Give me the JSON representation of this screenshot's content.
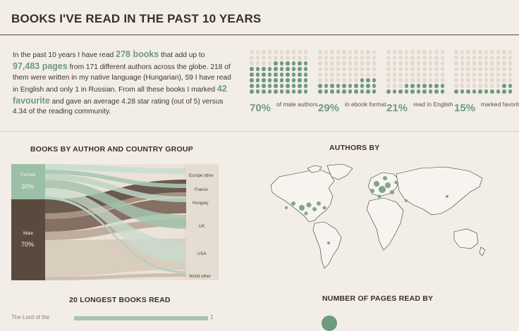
{
  "header": {
    "title": "BOOKS I'VE READ IN THE PAST 10 YEARS"
  },
  "intro": {
    "p1": "In the past 10 years I have read ",
    "books": "278 books",
    "p2": " that add up to ",
    "pages": "97,483 pages",
    "p3": " from 171 different authors across the globe. 218 of them were written in my native language (Hungarian), 59 I have read in English and only 1 in Russian. From all these books I marked ",
    "favourite": "42 favourite",
    "p4": " and gave an average 4.28 star rating (out of 5) versus 4.34 of the reading community."
  },
  "waffles": [
    {
      "pct": "70%",
      "label": "of male authors",
      "value": 0.7
    },
    {
      "pct": "29%",
      "label": "in ebook format",
      "value": 0.29
    },
    {
      "pct": "21%",
      "label": "read in English",
      "value": 0.21
    },
    {
      "pct": "15%",
      "label": "marked favorite",
      "value": 0.15
    }
  ],
  "sections": {
    "sankey_title": "BOOKS BY AUTHOR AND COUNTRY GROUP",
    "map_title": "AUTHORS BY",
    "longest_title": "20 LONGEST BOOKS READ",
    "pages_title": "NUMBER OF PAGES READ BY"
  },
  "sankey": {
    "sources": [
      {
        "name": "Female",
        "pct": "30%",
        "value": 0.3
      },
      {
        "name": "Male",
        "pct": "70%",
        "value": 0.7
      }
    ],
    "targets": [
      "Europe other",
      "France",
      "Hungary",
      "UK",
      "USA",
      "World other"
    ]
  },
  "bottom": {
    "first_label": "The Lord of the",
    "tail": "1"
  },
  "colors": {
    "accent": "#6f9a80",
    "brown": "#5a4a40",
    "bg": "#f2ede7",
    "dot_off": "#e7d8cc"
  }
}
